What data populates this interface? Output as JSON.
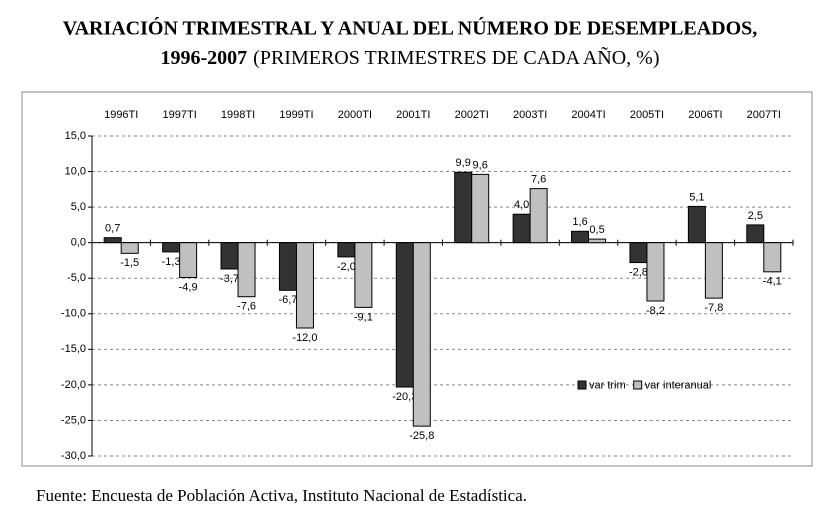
{
  "chart_data": {
    "type": "bar",
    "title_lines": [
      "VARIACIÓN TRIMESTRAL Y ANUAL DEL NÚMERO DE DESEMPLEADOS,",
      "1996-2007"
    ],
    "subtitle": "(PRIMEROS TRIMESTRES DE CADA AÑO, %)",
    "source": "Fuente: Encuesta de Población Activa, Instituto Nacional de Estadística.",
    "categories": [
      "1996TI",
      "1997TI",
      "1998TI",
      "1999TI",
      "2000TI",
      "2001TI",
      "2002TI",
      "2003TI",
      "2004TI",
      "2005TI",
      "2006TI",
      "2007TI"
    ],
    "series": [
      {
        "name": "var trim",
        "color": "#333333",
        "values": [
          0.7,
          -1.3,
          -3.7,
          -6.7,
          -2.0,
          -20.3,
          9.9,
          4.0,
          1.6,
          -2.8,
          5.1,
          2.5
        ],
        "value_labels": [
          "0,7",
          "-1,3",
          "-3,7",
          "-6,7",
          "-2,0",
          "-20,3",
          "9,9",
          "4,0",
          "1,6",
          "-2,8",
          "5,1",
          "2,5"
        ]
      },
      {
        "name": "var interanual",
        "color": "#c0c0c0",
        "values": [
          -1.5,
          -4.9,
          -7.6,
          -12.0,
          -9.1,
          -25.8,
          9.6,
          7.6,
          0.5,
          -8.2,
          -7.8,
          -4.1
        ],
        "value_labels": [
          "-1,5",
          "-4,9",
          "-7,6",
          "-12,0",
          "-9,1",
          "-25,8",
          "9,6",
          "7,6",
          "0,5",
          "-8,2",
          "-7,8",
          "-4,1"
        ]
      }
    ],
    "ylim": [
      -30,
      15
    ],
    "yticks": [
      {
        "value": 15,
        "label": "15,0"
      },
      {
        "value": 10,
        "label": "10,0"
      },
      {
        "value": 5,
        "label": "5,0"
      },
      {
        "value": 0,
        "label": "0,0"
      },
      {
        "value": -5,
        "label": "-5,0"
      },
      {
        "value": -10,
        "label": "-10,0"
      },
      {
        "value": -15,
        "label": "-15,0"
      },
      {
        "value": -20,
        "label": "-20,0"
      },
      {
        "value": -25,
        "label": "-25,0"
      },
      {
        "value": -30,
        "label": "-30,0"
      }
    ],
    "grid": true
  }
}
